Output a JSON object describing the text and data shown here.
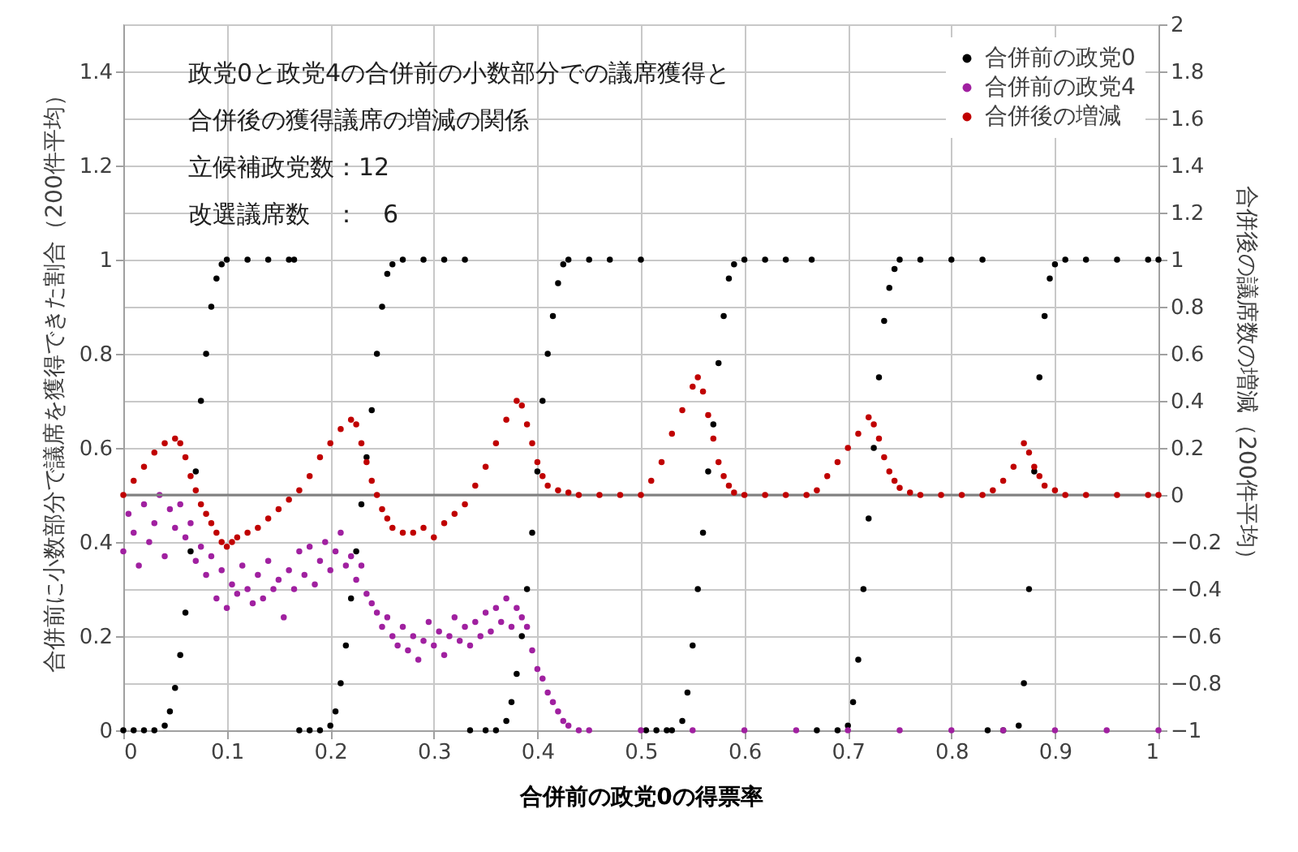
{
  "chart_data": {
    "type": "scatter",
    "title": "政党0と政党4の合併前の小数部分での議席獲得と合併後の獲得議席の増減の関係",
    "annotations": [
      "立候補政党数：12",
      "改選議席数　：　6"
    ],
    "xlabel": "合併前の政党0の得票率",
    "ylabel": "合併前に小数部分で議席を獲得できた割合（200件平均）",
    "y2label": "合併後の議席数の増減（200件平均）",
    "xlim": [
      0,
      1
    ],
    "xticks": [
      0,
      0.1,
      0.2,
      0.3,
      0.4,
      0.5,
      0.6,
      0.7,
      0.8,
      0.9,
      1
    ],
    "ylim": [
      0,
      1.5
    ],
    "yticks": [
      0,
      0.2,
      0.4,
      0.6,
      0.8,
      1,
      1.2,
      1.4
    ],
    "y2lim": [
      -1,
      2
    ],
    "y2ticks": [
      -1,
      -0.8,
      -0.6,
      -0.4,
      -0.2,
      0,
      0.2,
      0.4,
      0.6,
      0.8,
      1,
      1.2,
      1.4,
      1.6,
      1.8,
      2
    ],
    "grid": true,
    "legend": "top right",
    "marker": "circle",
    "ref_lines": [
      {
        "axis": "y2",
        "value": 0,
        "color": "#808080"
      }
    ],
    "series": [
      {
        "name": "合併前の政党0",
        "color": "#000000",
        "x": [
          0,
          0.01,
          0.02,
          0.03,
          0.04,
          0.045,
          0.05,
          0.055,
          0.06,
          0.065,
          0.07,
          0.075,
          0.08,
          0.085,
          0.09,
          0.095,
          0.1,
          0.12,
          0.14,
          0.16,
          0.165,
          0.17,
          0.18,
          0.19,
          0.2,
          0.205,
          0.21,
          0.215,
          0.22,
          0.225,
          0.23,
          0.235,
          0.24,
          0.245,
          0.25,
          0.255,
          0.26,
          0.27,
          0.29,
          0.31,
          0.33,
          0.335,
          0.35,
          0.36,
          0.37,
          0.375,
          0.38,
          0.385,
          0.39,
          0.395,
          0.4,
          0.405,
          0.41,
          0.415,
          0.42,
          0.425,
          0.43,
          0.45,
          0.47,
          0.5,
          0.505,
          0.515,
          0.525,
          0.53,
          0.54,
          0.545,
          0.55,
          0.555,
          0.56,
          0.565,
          0.57,
          0.575,
          0.58,
          0.585,
          0.59,
          0.6,
          0.62,
          0.64,
          0.665,
          0.67,
          0.69,
          0.7,
          0.705,
          0.71,
          0.715,
          0.72,
          0.725,
          0.73,
          0.735,
          0.74,
          0.745,
          0.75,
          0.77,
          0.8,
          0.83,
          0.835,
          0.85,
          0.865,
          0.87,
          0.875,
          0.88,
          0.885,
          0.89,
          0.895,
          0.9,
          0.91,
          0.93,
          0.96,
          0.99,
          1
        ],
        "values": [
          0,
          0,
          0,
          0,
          0.01,
          0.04,
          0.09,
          0.16,
          0.25,
          0.38,
          0.55,
          0.7,
          0.8,
          0.9,
          0.96,
          0.99,
          1,
          1,
          1,
          1,
          1,
          0,
          0,
          0,
          0.01,
          0.04,
          0.1,
          0.18,
          0.28,
          0.38,
          0.48,
          0.58,
          0.68,
          0.8,
          0.9,
          0.97,
          0.99,
          1,
          1,
          1,
          1,
          0,
          0,
          0,
          0.02,
          0.06,
          0.12,
          0.2,
          0.3,
          0.42,
          0.55,
          0.7,
          0.8,
          0.88,
          0.95,
          0.99,
          1,
          1,
          1,
          1,
          0,
          0,
          0,
          0,
          0.02,
          0.08,
          0.18,
          0.3,
          0.42,
          0.55,
          0.65,
          0.78,
          0.88,
          0.96,
          0.99,
          1,
          1,
          1,
          1,
          0,
          0,
          0.01,
          0.06,
          0.15,
          0.3,
          0.45,
          0.6,
          0.75,
          0.87,
          0.94,
          0.98,
          1,
          1,
          1,
          1,
          0,
          0,
          0.01,
          0.1,
          0.3,
          0.55,
          0.75,
          0.88,
          0.96,
          0.99,
          1,
          1,
          1,
          1,
          1
        ]
      },
      {
        "name": "合併前の政党4",
        "color": "#a020a0",
        "x": [
          0,
          0.005,
          0.01,
          0.015,
          0.02,
          0.025,
          0.03,
          0.035,
          0.04,
          0.045,
          0.05,
          0.055,
          0.06,
          0.065,
          0.07,
          0.075,
          0.08,
          0.085,
          0.09,
          0.095,
          0.1,
          0.105,
          0.11,
          0.115,
          0.12,
          0.125,
          0.13,
          0.135,
          0.14,
          0.145,
          0.15,
          0.155,
          0.16,
          0.165,
          0.17,
          0.175,
          0.18,
          0.185,
          0.19,
          0.195,
          0.2,
          0.205,
          0.21,
          0.215,
          0.22,
          0.225,
          0.23,
          0.235,
          0.24,
          0.245,
          0.25,
          0.255,
          0.26,
          0.265,
          0.27,
          0.275,
          0.28,
          0.285,
          0.29,
          0.295,
          0.3,
          0.305,
          0.31,
          0.315,
          0.32,
          0.325,
          0.33,
          0.335,
          0.34,
          0.345,
          0.35,
          0.355,
          0.36,
          0.365,
          0.37,
          0.375,
          0.38,
          0.385,
          0.39,
          0.395,
          0.4,
          0.405,
          0.41,
          0.415,
          0.42,
          0.425,
          0.43,
          0.44,
          0.45,
          0.5,
          0.55,
          0.6,
          0.65,
          0.7,
          0.75,
          0.8,
          0.85,
          0.9,
          0.95,
          1
        ],
        "values": [
          0.38,
          0.46,
          0.42,
          0.35,
          0.48,
          0.4,
          0.44,
          0.5,
          0.37,
          0.47,
          0.43,
          0.48,
          0.41,
          0.44,
          0.36,
          0.39,
          0.33,
          0.37,
          0.28,
          0.34,
          0.26,
          0.31,
          0.29,
          0.35,
          0.3,
          0.27,
          0.33,
          0.28,
          0.36,
          0.3,
          0.32,
          0.24,
          0.34,
          0.3,
          0.38,
          0.33,
          0.39,
          0.31,
          0.36,
          0.4,
          0.34,
          0.38,
          0.42,
          0.35,
          0.37,
          0.32,
          0.35,
          0.29,
          0.27,
          0.25,
          0.22,
          0.24,
          0.2,
          0.18,
          0.22,
          0.17,
          0.2,
          0.15,
          0.19,
          0.23,
          0.18,
          0.21,
          0.16,
          0.2,
          0.24,
          0.19,
          0.22,
          0.18,
          0.23,
          0.2,
          0.25,
          0.21,
          0.26,
          0.23,
          0.28,
          0.22,
          0.26,
          0.24,
          0.22,
          0.17,
          0.13,
          0.11,
          0.08,
          0.06,
          0.04,
          0.02,
          0.01,
          0,
          0,
          0,
          0,
          0,
          0,
          0,
          0,
          0,
          0,
          0,
          0,
          0
        ]
      },
      {
        "name": "合併後の増減",
        "color": "#c00000",
        "axis": "y2",
        "x": [
          0,
          0.01,
          0.02,
          0.03,
          0.04,
          0.05,
          0.055,
          0.06,
          0.065,
          0.07,
          0.075,
          0.08,
          0.085,
          0.09,
          0.095,
          0.1,
          0.105,
          0.11,
          0.12,
          0.13,
          0.14,
          0.15,
          0.16,
          0.17,
          0.18,
          0.19,
          0.2,
          0.21,
          0.22,
          0.225,
          0.23,
          0.235,
          0.24,
          0.245,
          0.25,
          0.255,
          0.26,
          0.27,
          0.28,
          0.29,
          0.3,
          0.31,
          0.32,
          0.33,
          0.34,
          0.35,
          0.36,
          0.37,
          0.38,
          0.385,
          0.39,
          0.395,
          0.4,
          0.405,
          0.41,
          0.42,
          0.43,
          0.44,
          0.46,
          0.48,
          0.5,
          0.51,
          0.52,
          0.53,
          0.54,
          0.55,
          0.555,
          0.56,
          0.565,
          0.57,
          0.575,
          0.58,
          0.585,
          0.59,
          0.6,
          0.62,
          0.64,
          0.66,
          0.67,
          0.68,
          0.69,
          0.7,
          0.71,
          0.72,
          0.725,
          0.73,
          0.735,
          0.74,
          0.745,
          0.75,
          0.76,
          0.77,
          0.79,
          0.81,
          0.83,
          0.84,
          0.85,
          0.86,
          0.87,
          0.875,
          0.88,
          0.885,
          0.89,
          0.9,
          0.91,
          0.93,
          0.96,
          0.99,
          1
        ],
        "values": [
          0,
          0.06,
          0.12,
          0.18,
          0.22,
          0.24,
          0.22,
          0.16,
          0.08,
          0.02,
          -0.04,
          -0.08,
          -0.12,
          -0.16,
          -0.2,
          -0.22,
          -0.2,
          -0.18,
          -0.16,
          -0.14,
          -0.1,
          -0.06,
          -0.02,
          0.02,
          0.08,
          0.16,
          0.22,
          0.28,
          0.32,
          0.3,
          0.22,
          0.14,
          0.06,
          0,
          -0.06,
          -0.1,
          -0.14,
          -0.16,
          -0.16,
          -0.14,
          -0.18,
          -0.12,
          -0.08,
          -0.04,
          0.04,
          0.12,
          0.22,
          0.32,
          0.4,
          0.38,
          0.3,
          0.22,
          0.14,
          0.08,
          0.04,
          0.02,
          0.01,
          0,
          0,
          0,
          0,
          0.06,
          0.14,
          0.26,
          0.36,
          0.46,
          0.5,
          0.44,
          0.34,
          0.24,
          0.14,
          0.08,
          0.04,
          0.01,
          0,
          0,
          0,
          0,
          0.02,
          0.08,
          0.14,
          0.2,
          0.26,
          0.33,
          0.3,
          0.24,
          0.16,
          0.1,
          0.06,
          0.03,
          0.01,
          0,
          0,
          0,
          0,
          0.02,
          0.06,
          0.12,
          0.22,
          0.18,
          0.12,
          0.08,
          0.04,
          0.02,
          0,
          0,
          0,
          0,
          0
        ]
      }
    ]
  }
}
